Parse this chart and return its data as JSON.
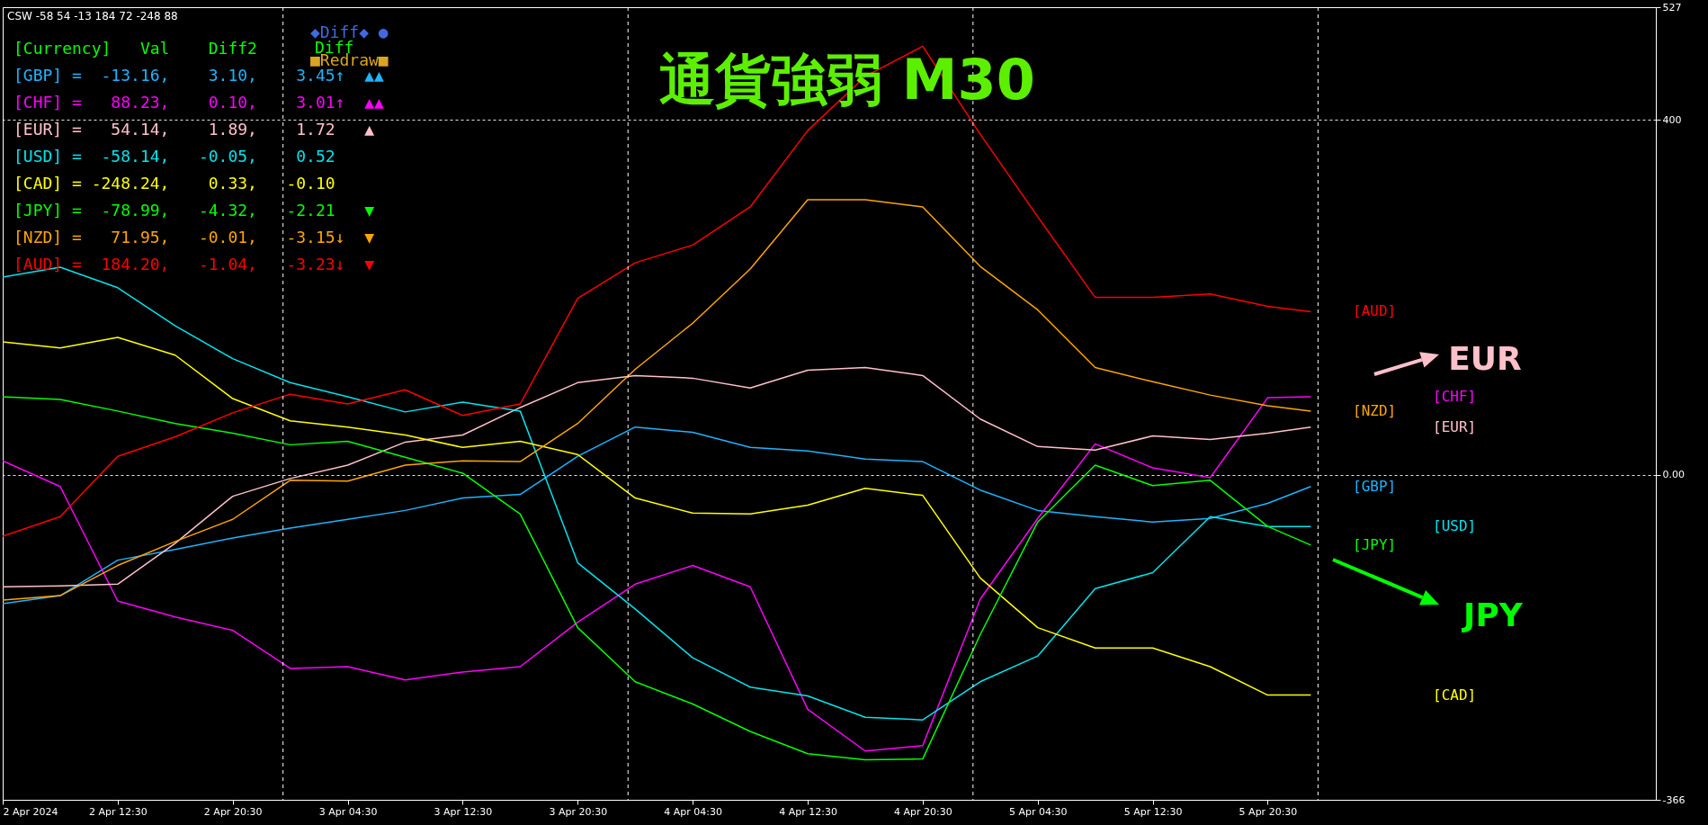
{
  "chart_data": {
    "type": "line",
    "title": "通貨強弱 M30",
    "x": [
      "2024-04-02T04:30",
      "2024-04-02T08:30",
      "2024-04-02T12:30",
      "2024-04-02T16:30",
      "2024-04-02T20:30",
      "2024-04-03T00:30",
      "2024-04-03T04:30",
      "2024-04-03T08:30",
      "2024-04-03T12:30",
      "2024-04-03T16:30",
      "2024-04-03T20:30",
      "2024-04-04T00:30",
      "2024-04-04T04:30",
      "2024-04-04T08:30",
      "2024-04-04T12:30",
      "2024-04-04T16:30",
      "2024-04-04T20:30",
      "2024-04-05T00:30",
      "2024-04-05T04:30",
      "2024-04-05T08:30",
      "2024-04-05T12:30",
      "2024-04-05T16:30",
      "2024-04-05T20:30",
      "2024-04-05T23:30"
    ],
    "series": [
      {
        "name": "[GBP]",
        "color": "#1eb4ff",
        "values": [
          -145,
          -136,
          -96,
          -84,
          -71,
          -60,
          -50,
          -40,
          -26,
          -22,
          21,
          54,
          48,
          31,
          27,
          18,
          15,
          -17,
          -40,
          -47,
          -53,
          -49,
          -32,
          -13
        ]
      },
      {
        "name": "[CHF]",
        "color": "#ff00ff",
        "values": [
          16,
          -13,
          -142,
          -160,
          -175,
          -218,
          -216,
          -231,
          -222,
          -216,
          -166,
          -123,
          -102,
          -126,
          -264,
          -311,
          -305,
          -140,
          -49,
          35,
          8,
          -3,
          87,
          88
        ]
      },
      {
        "name": "[EUR]",
        "color": "#ffc0cb",
        "values": [
          -126,
          -125,
          -123,
          -77,
          -24,
          -4,
          11,
          37,
          45,
          76,
          104,
          112,
          109,
          98,
          118,
          121,
          112,
          63,
          32,
          28,
          44,
          40,
          47,
          54
        ]
      },
      {
        "name": "[USD]",
        "color": "#00e5ee",
        "values": [
          223,
          234,
          211,
          168,
          131,
          104,
          88,
          71,
          82,
          72,
          -99,
          -151,
          -206,
          -239,
          -249,
          -273,
          -276,
          -233,
          -204,
          -128,
          -110,
          -47,
          -58,
          -58
        ]
      },
      {
        "name": "[CAD]",
        "color": "#ffff00",
        "values": [
          150,
          143,
          155,
          135,
          86,
          61,
          54,
          45,
          31,
          38,
          23,
          -26,
          -43,
          -44,
          -34,
          -15,
          -23,
          -116,
          -172,
          -195,
          -195,
          -216,
          -248,
          -248
        ]
      },
      {
        "name": "[JPY]",
        "color": "#00ff00",
        "values": [
          88,
          85,
          72,
          58,
          47,
          34,
          38,
          20,
          2,
          -44,
          -172,
          -233,
          -258,
          -289,
          -314,
          -321,
          -320,
          -180,
          -53,
          11,
          -12,
          -6,
          -58,
          -79
        ]
      },
      {
        "name": "[NZD]",
        "color": "#ffa500",
        "values": [
          -141,
          -136,
          -102,
          -75,
          -50,
          -6,
          -7,
          11,
          16,
          15,
          58,
          119,
          171,
          232,
          310,
          310,
          302,
          235,
          186,
          121,
          105,
          90,
          78,
          72
        ]
      },
      {
        "name": "[AUD]",
        "color": "#ff0000",
        "values": [
          -69,
          -47,
          21,
          43,
          70,
          91,
          80,
          96,
          67,
          80,
          199,
          239,
          259,
          302,
          388,
          449,
          483,
          384,
          291,
          200,
          200,
          204,
          190,
          184
        ]
      }
    ],
    "xlim": [
      "2024-04-02T04:30",
      "2024-04-06T23:30"
    ],
    "xticks": [
      {
        "value": "2024-04-02T04:30",
        "label": "2 Apr 2024"
      },
      {
        "value": "2024-04-02T12:30",
        "label": "2 Apr 12:30"
      },
      {
        "value": "2024-04-02T20:30",
        "label": "2 Apr 20:30"
      },
      {
        "value": "2024-04-03T04:30",
        "label": "3 Apr 04:30"
      },
      {
        "value": "2024-04-03T12:30",
        "label": "3 Apr 12:30"
      },
      {
        "value": "2024-04-03T20:30",
        "label": "3 Apr 20:30"
      },
      {
        "value": "2024-04-04T04:30",
        "label": "4 Apr 04:30"
      },
      {
        "value": "2024-04-04T12:30",
        "label": "4 Apr 12:30"
      },
      {
        "value": "2024-04-04T20:30",
        "label": "4 Apr 20:30"
      },
      {
        "value": "2024-04-05T04:30",
        "label": "5 Apr 04:30"
      },
      {
        "value": "2024-04-05T12:30",
        "label": "5 Apr 12:30"
      },
      {
        "value": "2024-04-05T20:30",
        "label": "5 Apr 20:30"
      }
    ],
    "ylim": [
      -366,
      527
    ],
    "yticks": [
      -366,
      {
        "value": 0,
        "label": "0.00"
      },
      400,
      527
    ],
    "grid": "y",
    "ref_lines": [
      {
        "axis": "x",
        "value": "2024-04-03T00:00",
        "line_style": "dashed"
      },
      {
        "axis": "x",
        "value": "2024-04-04T00:00",
        "line_style": "dashed"
      },
      {
        "axis": "x",
        "value": "2024-04-05T00:00",
        "line_style": "dashed"
      },
      {
        "axis": "x",
        "value": "2024-04-06T00:00",
        "line_style": "dashed"
      }
    ],
    "annotations": [
      "CSW -58 54 -13 184 72 -248 88",
      "[Currency]   Val    Diff2",
      "[GBP] =  -13.16,    3.10,    3.45↑  ▲▲",
      "[CHF] =   88.23,    0.10,    3.01↑  ▲▲",
      "[EUR] =   54.14,    1.89,    1.72   ▲",
      "[USD] =  -58.14,   -0.05,    0.52",
      "[CAD] = -248.24,    0.33,   -0.10",
      "[JPY] =  -78.99,   -4.32,   -2.21   ▼",
      "[NZD] =   71.95,   -0.01,   -3.15↓  ▼",
      "[AUD] =  184.20,   -1.04,   -3.23↓  ▼",
      "◆Diff◆ ●",
      "Diff",
      "■Redraw■",
      "EUR",
      "JPY"
    ]
  }
}
